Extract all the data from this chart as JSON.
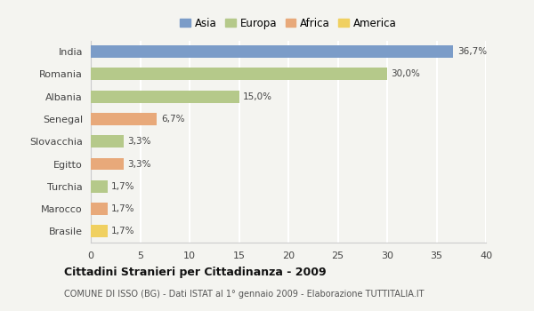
{
  "categories": [
    "India",
    "Romania",
    "Albania",
    "Senegal",
    "Slovacchia",
    "Egitto",
    "Turchia",
    "Marocco",
    "Brasile"
  ],
  "values": [
    36.7,
    30.0,
    15.0,
    6.7,
    3.3,
    3.3,
    1.7,
    1.7,
    1.7
  ],
  "labels": [
    "36,7%",
    "30,0%",
    "15,0%",
    "6,7%",
    "3,3%",
    "3,3%",
    "1,7%",
    "1,7%",
    "1,7%"
  ],
  "colors": [
    "#7b9cc8",
    "#b5c98a",
    "#b5c98a",
    "#e8a97a",
    "#b5c98a",
    "#e8a97a",
    "#b5c98a",
    "#e8a97a",
    "#f0d060"
  ],
  "legend_labels": [
    "Asia",
    "Europa",
    "Africa",
    "America"
  ],
  "legend_colors": [
    "#7b9cc8",
    "#b5c98a",
    "#e8a97a",
    "#f0d060"
  ],
  "xlim": [
    0,
    40
  ],
  "xticks": [
    0,
    5,
    10,
    15,
    20,
    25,
    30,
    35,
    40
  ],
  "title": "Cittadini Stranieri per Cittadinanza - 2009",
  "subtitle": "COMUNE DI ISSO (BG) - Dati ISTAT al 1° gennaio 2009 - Elaborazione TUTTITALIA.IT",
  "bg_color": "#f4f4f0",
  "plot_bg_color": "#f4f4f0",
  "grid_color": "#ffffff",
  "bar_height": 0.55
}
